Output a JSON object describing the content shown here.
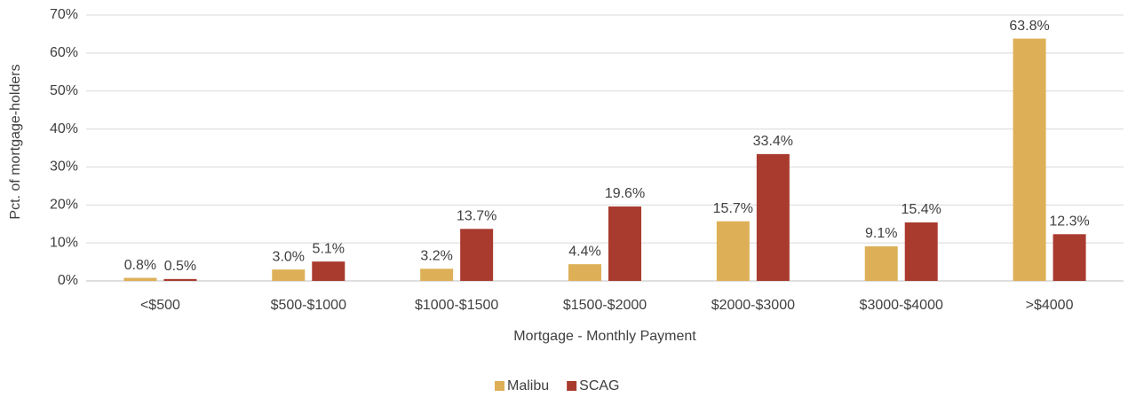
{
  "chart_data": {
    "type": "bar",
    "x_label": "Mortgage - Monthly Payment",
    "y_label": "Pct. of mortgage-holders",
    "categories": [
      "<$500",
      "$500-$1000",
      "$1000-$1500",
      "$1500-$2000",
      "$2000-$3000",
      "$3000-$4000",
      ">$4000"
    ],
    "series": [
      {
        "name": "Malibu",
        "color": "#ddb057",
        "values": [
          0.8,
          3.0,
          3.2,
          4.4,
          15.7,
          9.1,
          63.8
        ],
        "value_labels": [
          "0.8%",
          "3.0%",
          "3.2%",
          "4.4%",
          "15.7%",
          "9.1%",
          "63.8%"
        ]
      },
      {
        "name": "SCAG",
        "color": "#a93b2e",
        "values": [
          0.5,
          5.1,
          13.7,
          19.6,
          33.4,
          15.4,
          12.3
        ],
        "value_labels": [
          "0.5%",
          "5.1%",
          "13.7%",
          "19.6%",
          "33.4%",
          "15.4%",
          "12.3%"
        ]
      }
    ],
    "ylim": [
      0,
      70
    ],
    "yticks": [
      {
        "value": 0,
        "label": "0%"
      },
      {
        "value": 10,
        "label": "10%"
      },
      {
        "value": 20,
        "label": "20%"
      },
      {
        "value": 30,
        "label": "30%"
      },
      {
        "value": 40,
        "label": "40%"
      },
      {
        "value": 50,
        "label": "50%"
      },
      {
        "value": 60,
        "label": "60%"
      },
      {
        "value": 70,
        "label": "70%"
      }
    ],
    "grid": true,
    "legend": "bottom"
  }
}
